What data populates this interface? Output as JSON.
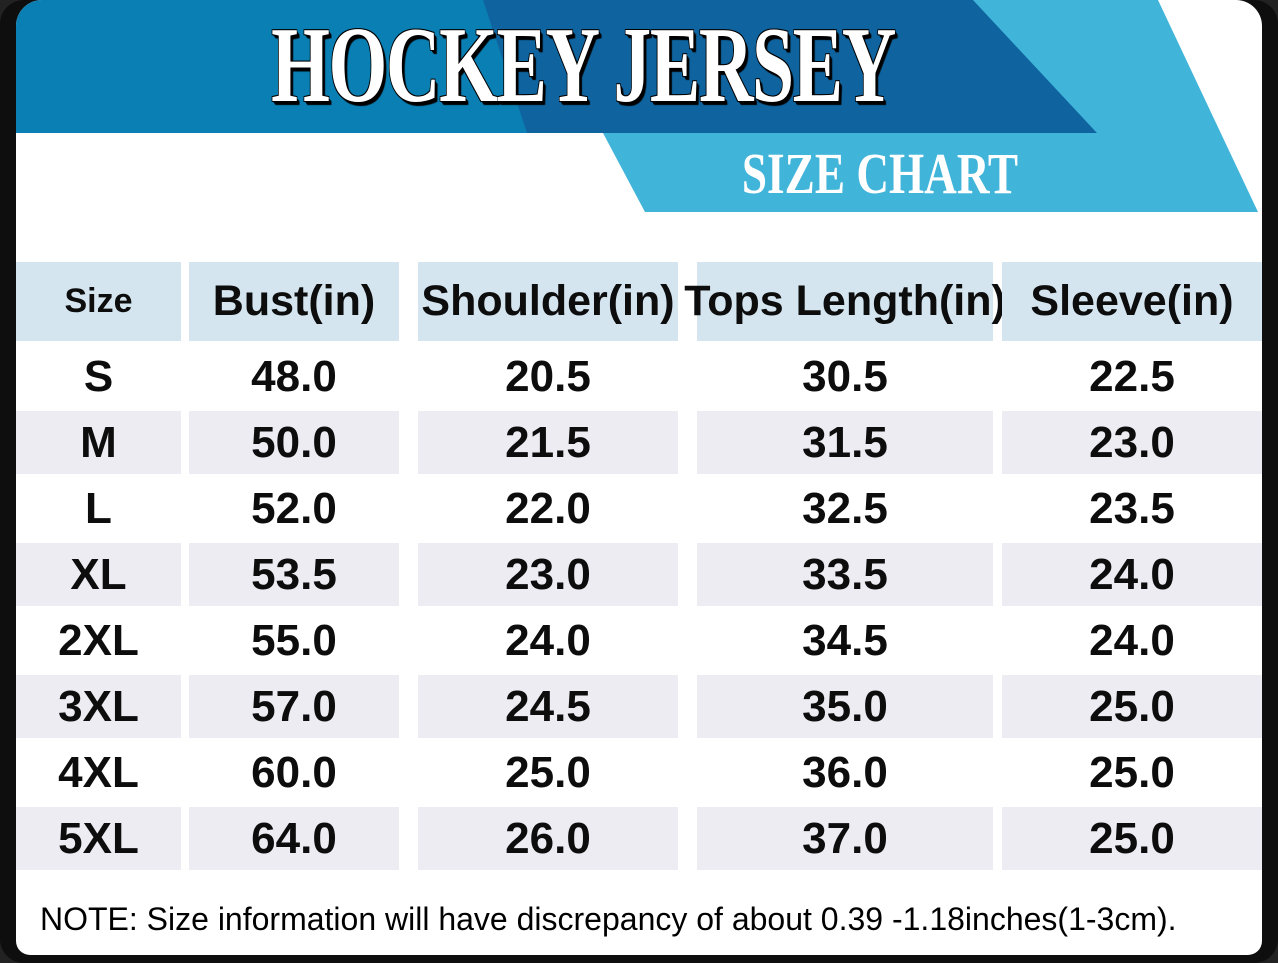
{
  "banner": {
    "title": "HOCKEY JERSEY",
    "subtitle": "SIZE CHART"
  },
  "chart_data": {
    "type": "table",
    "title": "HOCKEY JERSEY",
    "subtitle": "SIZE CHART",
    "columns": [
      "Size",
      "Bust(in)",
      "Shoulder(in)",
      "Tops Length(in)",
      "Sleeve(in)"
    ],
    "rows": [
      [
        "S",
        "48.0",
        "20.5",
        "30.5",
        "22.5"
      ],
      [
        "M",
        "50.0",
        "21.5",
        "31.5",
        "23.0"
      ],
      [
        "L",
        "52.0",
        "22.0",
        "32.5",
        "23.5"
      ],
      [
        "XL",
        "53.5",
        "23.0",
        "33.5",
        "24.0"
      ],
      [
        "2XL",
        "55.0",
        "24.0",
        "34.5",
        "24.0"
      ],
      [
        "3XL",
        "57.0",
        "24.5",
        "35.0",
        "25.0"
      ],
      [
        "4XL",
        "60.0",
        "25.0",
        "36.0",
        "25.0"
      ],
      [
        "5XL",
        "64.0",
        "26.0",
        "37.0",
        "25.0"
      ]
    ],
    "units": "inches"
  },
  "note": "NOTE: Size information will have discrepancy of about 0.39 -1.18inches(1-3cm).",
  "colors": {
    "frame": "#0e0e0e",
    "banner_medium": "#0a7fb3",
    "banner_dark": "#0f649f",
    "banner_light": "#41b4d9",
    "header_cell_bg": "#d4e5f0",
    "alt_row_bg": "#ececf2"
  }
}
